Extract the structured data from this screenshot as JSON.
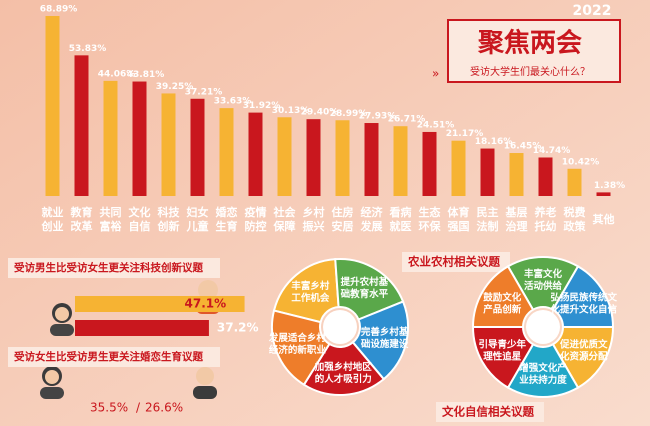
{
  "header": {
    "year": "2022",
    "title": "聚焦两会",
    "subtitle": "受访大学生们最关心什么？"
  },
  "chart_data": [
    {
      "type": "bar",
      "categories": [
        "就业创业",
        "教育改革",
        "共同富裕",
        "文化自信",
        "科技创新",
        "妇女儿童",
        "婚恋生育",
        "疫情防控",
        "社会保障",
        "乡村振兴",
        "住房安居",
        "经济发展",
        "看病就医",
        "生态环保",
        "体育强国",
        "民主法制",
        "基层治理",
        "养老托幼",
        "税费政策",
        "其他"
      ],
      "values": [
        68.89,
        53.83,
        44.06,
        43.81,
        39.25,
        37.21,
        33.63,
        31.92,
        30.13,
        29.4,
        28.99,
        27.93,
        26.71,
        24.51,
        21.17,
        18.16,
        16.45,
        14.74,
        10.42,
        1.38
      ],
      "value_labels": [
        "68.89%",
        "53.83%",
        "44.06%",
        "43.81%",
        "39.25%",
        "37.21%",
        "33.63%",
        "31.92%",
        "30.13%",
        "29.40%",
        "28.99%",
        "27.93%",
        "26.71%",
        "24.51%",
        "21.17%",
        "18.16%",
        "16.45%",
        "14.74%",
        "10.42%",
        "1.38%"
      ],
      "colors": [
        "#f6b333",
        "#c9171e"
      ]
    },
    {
      "type": "hbar",
      "title": "受访男生比受访女生更关注科技创新议题",
      "values": [
        47.1,
        37.2
      ],
      "value_labels": [
        "47.1%",
        "37.2%"
      ],
      "colors": [
        "#f6b333",
        "#c9171e"
      ]
    },
    {
      "type": "pair",
      "title": "受访女生比受访男生更关注婚恋生育议题",
      "values": [
        35.5,
        26.6
      ],
      "value_labels": [
        "35.5%",
        "26.6%"
      ],
      "separator": "/"
    }
  ],
  "wheels": [
    {
      "title": "农业农村相关议题",
      "segments": [
        "丰富乡村工作机会",
        "提升农村基础教育水平",
        "完善乡村基础设施建设",
        "加强乡村地区的人才吸引力",
        "发展适合乡村经济的新职业"
      ],
      "colors": [
        "#f6b333",
        "#5aa84a",
        "#2e8fd0",
        "#c9171e",
        "#ee7d2a"
      ]
    },
    {
      "title": "文化自信相关议题",
      "segments": [
        "丰富文化活动供给",
        "弘扬民族传统文化提升文化自信",
        "促进优质文化资源分配",
        "增强文化产业扶持力度",
        "引导青少年理性追星",
        "鼓励文化产品创新"
      ],
      "colors": [
        "#5aa84a",
        "#2e8fd0",
        "#f6b333",
        "#22a7c8",
        "#c9171e",
        "#ee7d2a"
      ]
    }
  ]
}
